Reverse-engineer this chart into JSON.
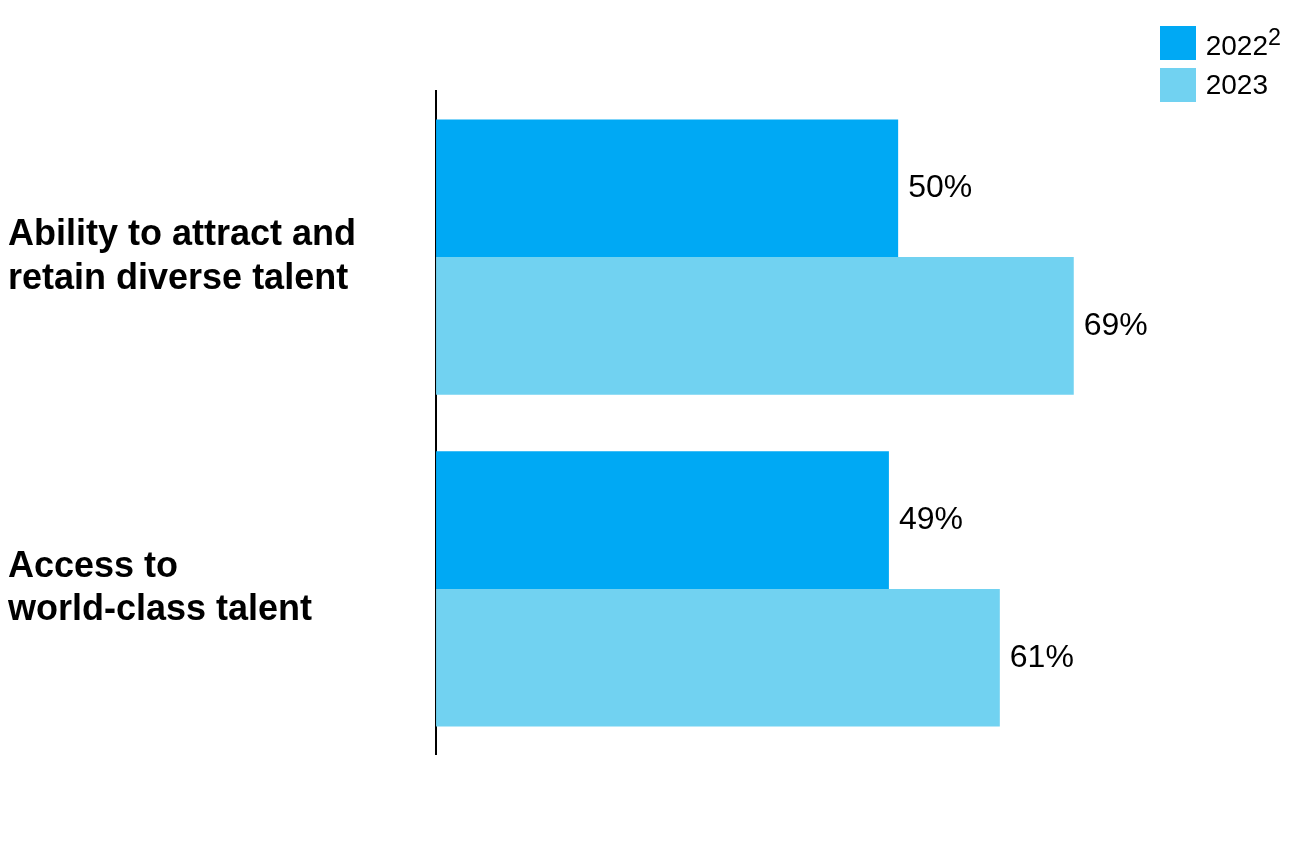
{
  "chart_data": {
    "type": "bar",
    "orientation": "horizontal",
    "categories": [
      "Ability to attract and retain diverse talent",
      "Access to world-class talent"
    ],
    "series": [
      {
        "name": "2022$^{2}$",
        "color": "#00a9f4",
        "values": [
          50,
          49
        ],
        "value_labels": [
          "50%",
          "49%"
        ]
      },
      {
        "name": "2023",
        "color": "#71d2f1",
        "values": [
          69,
          61
        ],
        "value_labels": [
          "69%",
          "61%"
        ]
      }
    ],
    "legend": "top right"
  }
}
